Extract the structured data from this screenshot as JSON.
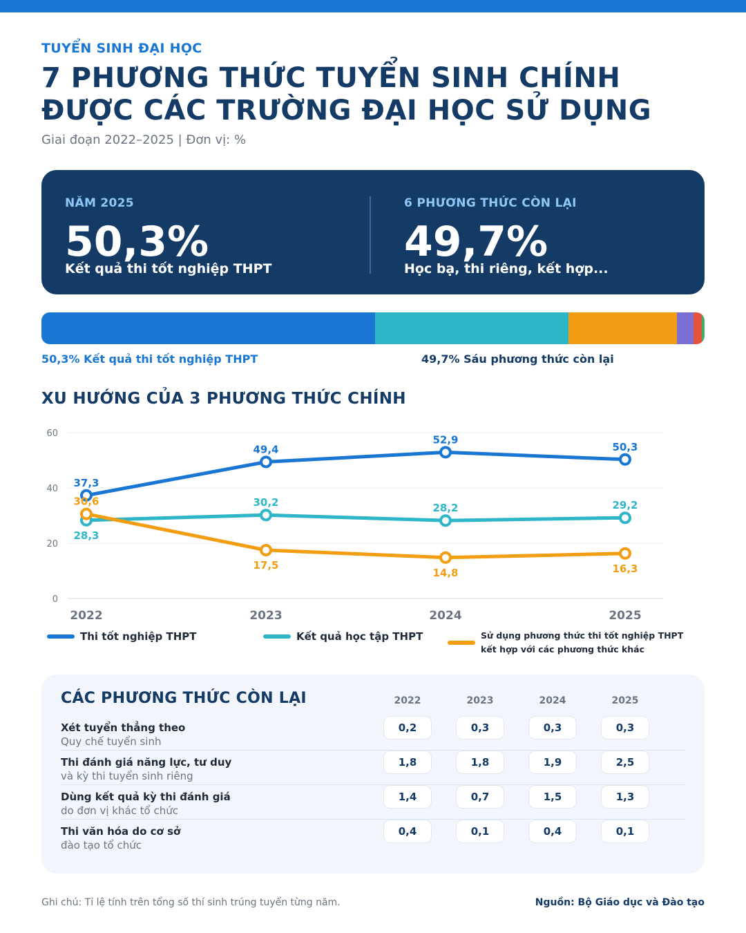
{
  "header": {
    "kicker": "TUYỂN SINH ĐẠI HỌC",
    "title_line1": "7 PHƯƠNG THỨC TUYỂN SINH CHÍNH",
    "title_line2": "ĐƯỢC CÁC TRƯỜNG ĐẠI HỌC SỬ DỤNG",
    "subtitle": "Giai đoạn 2022–2025 | Đơn vị: %"
  },
  "hero": {
    "left": {
      "label": "NĂM 2025",
      "value": "50,3%",
      "desc": "Kết quả thi tốt nghiệp THPT"
    },
    "right": {
      "label": "6 PHƯƠNG THỨC CÒN LẠI",
      "value": "49,7%",
      "desc": "Học bạ, thi riêng, kết hợp..."
    }
  },
  "stack": {
    "segments": [
      {
        "value": 50.3,
        "color": "#1976d2"
      },
      {
        "value": 29.2,
        "color": "#2db6c8"
      },
      {
        "value": 16.3,
        "color": "#f29d12"
      },
      {
        "value": 2.5,
        "color": "#7b6fd6"
      },
      {
        "value": 1.3,
        "color": "#e5533d"
      },
      {
        "value": 0.4,
        "color": "#3fae6a"
      }
    ],
    "left_label": "50,3% Kết quả thi tốt nghiệp THPT",
    "right_label": "49,7% Sáu phương thức còn lại"
  },
  "trend": {
    "title": "XU HƯỚNG CỦA 3 PHƯƠNG THỨC CHÍNH"
  },
  "chart_data": {
    "type": "line",
    "categories": [
      "2022",
      "2023",
      "2024",
      "2025"
    ],
    "ylim": [
      0,
      60
    ],
    "yticks": [
      0,
      20,
      40,
      60
    ],
    "grid": true,
    "series": [
      {
        "name": "Thi tốt nghiệp THPT",
        "color": "#1976d2",
        "values": [
          37.3,
          49.4,
          52.9,
          50.3
        ],
        "labels": [
          "37,3",
          "49,4",
          "52,9",
          "50,3"
        ]
      },
      {
        "name": "Kết quả học tập THPT",
        "color": "#2db6c8",
        "values": [
          28.3,
          30.2,
          28.2,
          29.2
        ],
        "labels": [
          "28,3",
          "30,2",
          "28,2",
          "29,2"
        ]
      },
      {
        "name": "Sử dụng phương thức thi tốt nghiệp THPT kết hợp với các phương thức khác",
        "color": "#f29d12",
        "values": [
          30.6,
          17.5,
          14.8,
          16.3
        ],
        "labels": [
          "30,6",
          "17,5",
          "14,8",
          "16,3"
        ]
      }
    ]
  },
  "legend": {
    "item1": "Thi tốt nghiệp THPT",
    "item2": "Kết quả học tập THPT",
    "item3_line1": "Sử dụng phương thức thi tốt nghiệp THPT",
    "item3_line2": "kết hợp với các phương thức khác"
  },
  "others": {
    "title": "CÁC PHƯƠNG THỨC CÒN LẠI",
    "years": [
      "2022",
      "2023",
      "2024",
      "2025"
    ],
    "rows": [
      {
        "name": "Xét tuyển thẳng theo",
        "sub": "Quy chế tuyển sinh",
        "values": [
          "0,2",
          "0,3",
          "0,3",
          "0,3"
        ]
      },
      {
        "name": "Thi đánh giá năng lực, tư duy",
        "sub": "và kỳ thi tuyển sinh riêng",
        "values": [
          "1,8",
          "1,8",
          "1,9",
          "2,5"
        ]
      },
      {
        "name": "Dùng kết quả kỳ thi đánh giá",
        "sub": "do đơn vị khác tổ chức",
        "values": [
          "1,4",
          "0,7",
          "1,5",
          "1,3"
        ]
      },
      {
        "name": "Thi văn hóa do cơ sở",
        "sub": "đào tạo tổ chức",
        "values": [
          "0,4",
          "0,1",
          "0,4",
          "0,1"
        ]
      }
    ]
  },
  "footer": {
    "note": "Ghi chú: Tỉ lệ tính trên tổng số thí sinh trúng tuyển từng năm.",
    "source": "Nguồn: Bộ Giáo dục và Đào tạo"
  }
}
